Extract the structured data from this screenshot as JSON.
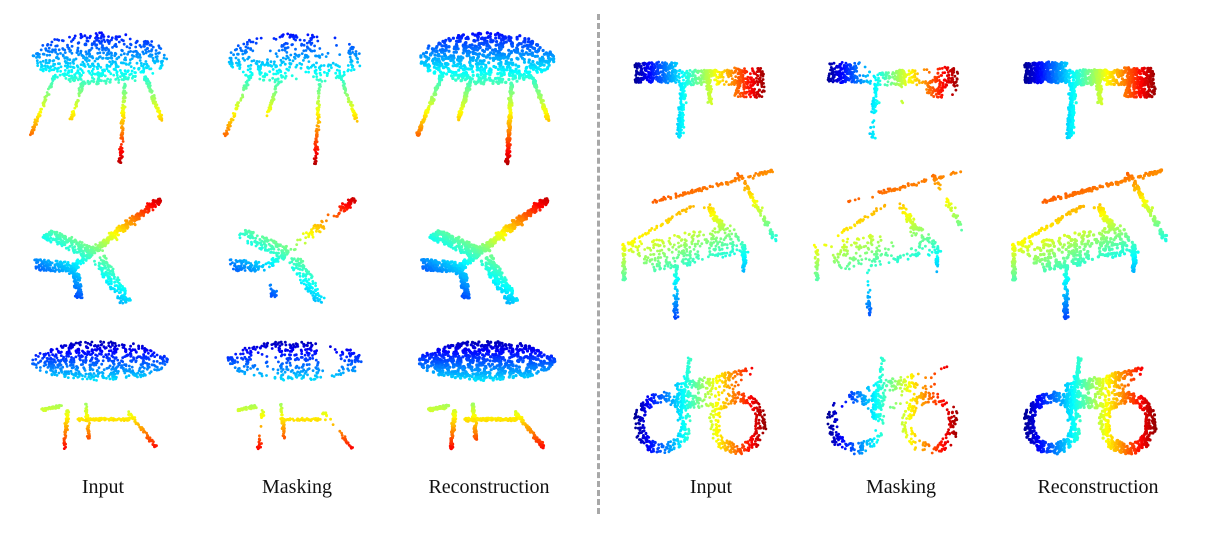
{
  "figure": {
    "left_panel": {
      "captions": [
        "Input",
        "Masking",
        "Reconstruction"
      ],
      "rows": [
        "table",
        "airplane",
        "lamp"
      ]
    },
    "right_panel": {
      "captions": [
        "Input",
        "Masking",
        "Reconstruction"
      ],
      "rows": [
        "gun",
        "chair",
        "motorbike"
      ]
    },
    "colormap": "jet",
    "divider": "dashed-vertical"
  }
}
